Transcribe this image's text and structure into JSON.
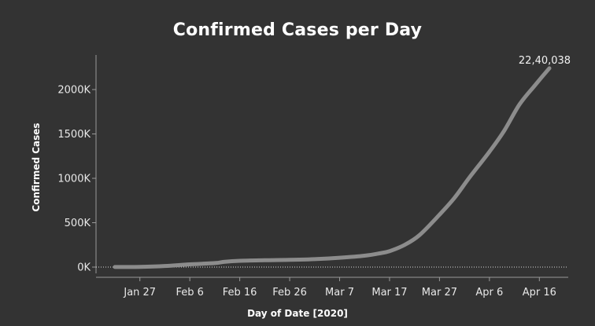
{
  "chart_data": {
    "type": "line",
    "title": "Confirmed Cases per Day",
    "xlabel": "Day of Date [2020]",
    "ylabel": "Confirmed Cases",
    "x_start": "2020-01-22",
    "x_end": "2020-04-18",
    "x_ticks": [
      {
        "date": "2020-01-27",
        "label": "Jan 27"
      },
      {
        "date": "2020-02-06",
        "label": "Feb 6"
      },
      {
        "date": "2020-02-16",
        "label": "Feb 16"
      },
      {
        "date": "2020-02-26",
        "label": "Feb 26"
      },
      {
        "date": "2020-03-07",
        "label": "Mar 7"
      },
      {
        "date": "2020-03-17",
        "label": "Mar 17"
      },
      {
        "date": "2020-03-27",
        "label": "Mar 27"
      },
      {
        "date": "2020-04-06",
        "label": "Apr 6"
      },
      {
        "date": "2020-04-16",
        "label": "Apr 16"
      }
    ],
    "ylim": [
      0,
      2400000
    ],
    "y_ticks": [
      {
        "value": 0,
        "label": "0K"
      },
      {
        "value": 500000,
        "label": "500K"
      },
      {
        "value": 1000000,
        "label": "1000K"
      },
      {
        "value": 1500000,
        "label": "1500K"
      },
      {
        "value": 2000000,
        "label": "2000K"
      }
    ],
    "end_label": "22,40,038",
    "series": [
      {
        "color": "#8c8c8c",
        "x": [
          "2020-01-22",
          "2020-01-27",
          "2020-02-01",
          "2020-02-06",
          "2020-02-11",
          "2020-02-13",
          "2020-02-16",
          "2020-02-21",
          "2020-02-26",
          "2020-03-02",
          "2020-03-07",
          "2020-03-12",
          "2020-03-15",
          "2020-03-17",
          "2020-03-20",
          "2020-03-23",
          "2020-03-27",
          "2020-03-30",
          "2020-04-02",
          "2020-04-06",
          "2020-04-09",
          "2020-04-12",
          "2020-04-15",
          "2020-04-18"
        ],
        "values": [
          555,
          2900,
          12000,
          31000,
          45000,
          60000,
          71000,
          77000,
          81000,
          89000,
          105000,
          128000,
          155000,
          180000,
          250000,
          360000,
          590000,
          780000,
          1010000,
          1300000,
          1540000,
          1830000,
          2040000,
          2240038
        ]
      }
    ]
  }
}
